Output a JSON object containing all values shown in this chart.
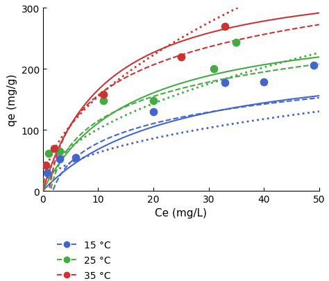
{
  "xlabel": "Ce (mg/L)",
  "ylabel": "qe (mg/g)",
  "xlim": [
    0,
    50
  ],
  "ylim": [
    0,
    300
  ],
  "xticks": [
    0,
    10,
    20,
    30,
    40,
    50
  ],
  "yticks": [
    0,
    100,
    200,
    300
  ],
  "colors": {
    "15C": "#4466cc",
    "25C": "#44aa44",
    "35C": "#cc3333"
  },
  "scatter_points": {
    "15C": [
      [
        0.8,
        30
      ],
      [
        3.0,
        52
      ],
      [
        6.0,
        55
      ],
      [
        20,
        130
      ],
      [
        33,
        177
      ],
      [
        40,
        178
      ],
      [
        49,
        206
      ]
    ],
    "25C": [
      [
        1.0,
        62
      ],
      [
        3.0,
        65
      ],
      [
        11,
        148
      ],
      [
        20,
        148
      ],
      [
        31,
        200
      ],
      [
        35,
        243
      ]
    ],
    "35C": [
      [
        0.5,
        42
      ],
      [
        2.0,
        70
      ],
      [
        11,
        158
      ],
      [
        25,
        220
      ],
      [
        33,
        270
      ]
    ]
  },
  "langmuir": {
    "15C": {
      "qmax": 230,
      "KL": 0.042
    },
    "25C": {
      "qmax": 290,
      "KL": 0.062
    },
    "35C": {
      "qmax": 360,
      "KL": 0.085
    }
  },
  "freundlich": {
    "15C": {
      "KF": 22,
      "n": 2.2
    },
    "25C": {
      "KF": 32,
      "n": 2.0
    },
    "35C": {
      "KF": 46,
      "n": 1.9
    }
  },
  "temkin": {
    "15C": {
      "A": 0.55,
      "B": 46
    },
    "25C": {
      "A": 0.72,
      "B": 58
    },
    "35C": {
      "A": 0.88,
      "B": 72
    }
  },
  "legend_labels": [
    "15 °C",
    "25 °C",
    "35 °C"
  ]
}
